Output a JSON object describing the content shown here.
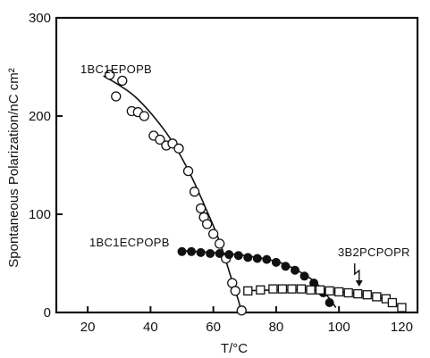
{
  "chart_data": {
    "type": "scatter",
    "xlabel": "T/°C",
    "ylabel": "Spontaneous Polarization/nC cm²",
    "xlim": [
      10,
      125
    ],
    "ylim": [
      0,
      300
    ],
    "xticks": [
      20,
      40,
      60,
      80,
      100,
      120
    ],
    "yticks": [
      0,
      100,
      200,
      300
    ],
    "grid": false,
    "legend": "none",
    "series": [
      {
        "name": "1BC1EPOPB",
        "marker": "open-circle",
        "points": [
          [
            27,
            242
          ],
          [
            29,
            220
          ],
          [
            31,
            236
          ],
          [
            34,
            205
          ],
          [
            36,
            204
          ],
          [
            38,
            200
          ],
          [
            41,
            180
          ],
          [
            43,
            176
          ],
          [
            45,
            170
          ],
          [
            47,
            172
          ],
          [
            49,
            167
          ],
          [
            52,
            144
          ],
          [
            54,
            123
          ],
          [
            56,
            106
          ],
          [
            57,
            97
          ],
          [
            58,
            90
          ],
          [
            60,
            80
          ],
          [
            62,
            70
          ],
          [
            64,
            55
          ],
          [
            66,
            30
          ],
          [
            67,
            22
          ],
          [
            69,
            2
          ]
        ],
        "fit": [
          [
            25,
            241
          ],
          [
            35,
            220
          ],
          [
            45,
            183
          ],
          [
            52,
            145
          ],
          [
            58,
            103
          ],
          [
            62,
            72
          ],
          [
            66,
            32
          ],
          [
            68,
            12
          ],
          [
            69,
            0
          ]
        ]
      },
      {
        "name": "1BC1ECPOPB",
        "marker": "filled-circle",
        "points": [
          [
            50,
            62
          ],
          [
            53,
            62
          ],
          [
            56,
            61
          ],
          [
            59,
            60
          ],
          [
            62,
            60
          ],
          [
            65,
            59
          ],
          [
            68,
            58
          ],
          [
            71,
            56
          ],
          [
            74,
            55
          ],
          [
            77,
            54
          ],
          [
            80,
            51
          ],
          [
            83,
            47
          ],
          [
            86,
            43
          ],
          [
            89,
            37
          ],
          [
            92,
            30
          ],
          [
            95,
            20
          ],
          [
            97,
            10
          ]
        ],
        "fit": [
          [
            50,
            63
          ],
          [
            60,
            61
          ],
          [
            70,
            58
          ],
          [
            80,
            52
          ],
          [
            86,
            44
          ],
          [
            92,
            32
          ],
          [
            96,
            18
          ],
          [
            99,
            5
          ]
        ]
      },
      {
        "name": "3B2PCPOPR",
        "marker": "open-square",
        "points": [
          [
            71,
            22
          ],
          [
            75,
            23
          ],
          [
            79,
            24
          ],
          [
            82,
            24
          ],
          [
            85,
            24
          ],
          [
            88,
            24
          ],
          [
            91,
            23
          ],
          [
            94,
            23
          ],
          [
            97,
            22
          ],
          [
            100,
            21
          ],
          [
            103,
            20
          ],
          [
            106,
            19
          ],
          [
            109,
            18
          ],
          [
            112,
            16
          ],
          [
            115,
            14
          ],
          [
            117,
            10
          ],
          [
            120,
            5
          ]
        ],
        "fit": [
          [
            70,
            22
          ],
          [
            80,
            23
          ],
          [
            90,
            23
          ],
          [
            100,
            21
          ],
          [
            108,
            18
          ],
          [
            114,
            14
          ],
          [
            118,
            8
          ],
          [
            121,
            2
          ]
        ]
      }
    ],
    "annotations": [
      {
        "series": "3B2PCPOPR",
        "kind": "lightning-arrow",
        "x": 107,
        "y": 20
      }
    ]
  }
}
